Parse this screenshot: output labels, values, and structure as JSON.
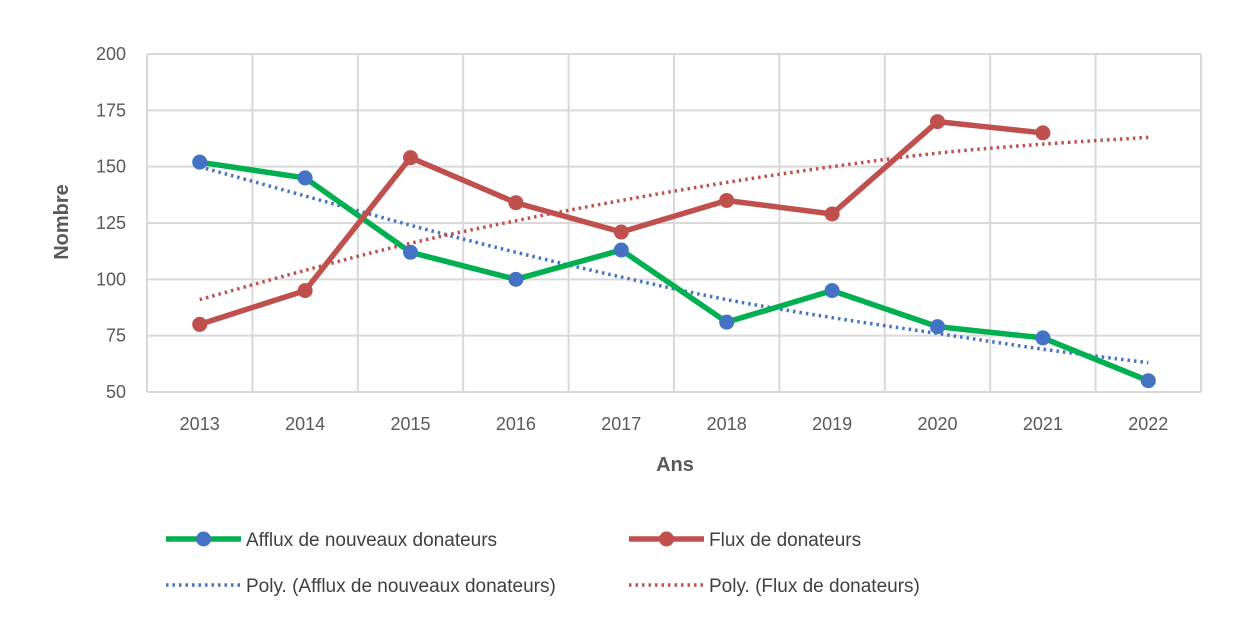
{
  "chart_data": {
    "type": "line",
    "x": [
      "2013",
      "2014",
      "2015",
      "2016",
      "2017",
      "2018",
      "2019",
      "2020",
      "2021",
      "2022"
    ],
    "xlabel": "Ans",
    "ylabel": "Nombre",
    "ylim": [
      50,
      200
    ],
    "yticks": [
      50,
      75,
      100,
      125,
      150,
      175,
      200
    ],
    "grid": true,
    "legend_position": "bottom",
    "series": [
      {
        "name": "Afflux de nouveaux donateurs",
        "values": [
          152,
          145,
          112,
          100,
          113,
          81,
          95,
          79,
          74,
          55
        ],
        "line_color": "#00B050",
        "marker_color": "#4472C4"
      },
      {
        "name": "Flux de donateurs",
        "values": [
          80,
          95,
          154,
          134,
          121,
          135,
          129,
          170,
          165,
          null
        ],
        "line_color": "#C0504D",
        "marker_color": "#C0504D"
      }
    ],
    "trendlines": [
      {
        "name": "Poly. (Afflux de nouveaux donateurs)",
        "values": [
          150,
          137,
          124,
          112,
          101,
          91,
          83,
          76,
          69,
          63
        ],
        "color": "#4472C4",
        "style": "dotted"
      },
      {
        "name": "Poly. (Flux de donateurs)",
        "values": [
          91,
          104,
          116,
          126,
          135,
          143,
          150,
          156,
          160,
          163
        ],
        "color": "#C0504D",
        "style": "dotted"
      }
    ]
  }
}
